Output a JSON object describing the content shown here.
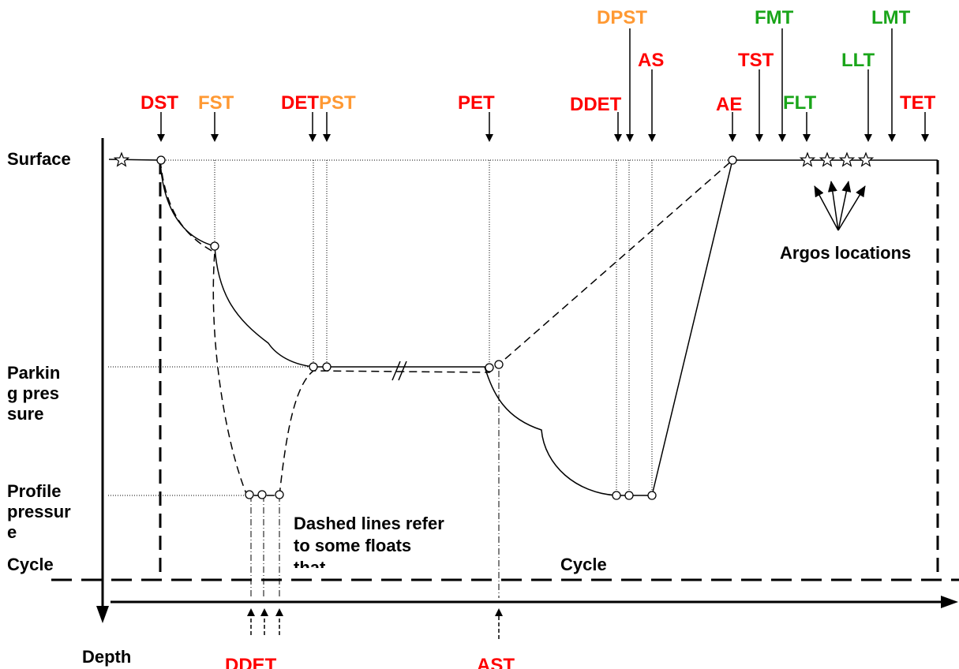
{
  "colors": {
    "red": "#ff0000",
    "orange": "#ff9933",
    "green": "#1aa51a",
    "black": "#000000"
  },
  "top_markers": {
    "DST": {
      "text": "DST",
      "color": "red"
    },
    "FST": {
      "text": "FST",
      "color": "orange"
    },
    "DET": {
      "text": "DET",
      "color": "red"
    },
    "PST": {
      "text": "PST",
      "color": "orange"
    },
    "PET": {
      "text": "PET",
      "color": "red"
    },
    "DDET": {
      "text": "DDET",
      "color": "red"
    },
    "DPST": {
      "text": "DPST",
      "color": "orange"
    },
    "AS": {
      "text": "AS",
      "color": "red"
    },
    "AE": {
      "text": "AE",
      "color": "red"
    },
    "TST": {
      "text": "TST",
      "color": "red"
    },
    "FMT": {
      "text": "FMT",
      "color": "green"
    },
    "FLT": {
      "text": "FLT",
      "color": "green"
    },
    "LLT": {
      "text": "LLT",
      "color": "green"
    },
    "LMT": {
      "text": "LMT",
      "color": "green"
    },
    "TET": {
      "text": "TET",
      "color": "red"
    }
  },
  "bottom_markers": {
    "DDET_bottom": {
      "text": "DDET",
      "color": "red"
    },
    "AST": {
      "text": "AST",
      "color": "red"
    }
  },
  "y_labels": {
    "surface": "Surface",
    "parking": "Parking pressure",
    "profile": "Profile pressure",
    "cycle": "Cycle",
    "depth": "Depth"
  },
  "annotations": {
    "argos": "Argos locations",
    "dashed_note": "Dashed lines refer to some floats that",
    "cycle_center": "Cycle"
  }
}
